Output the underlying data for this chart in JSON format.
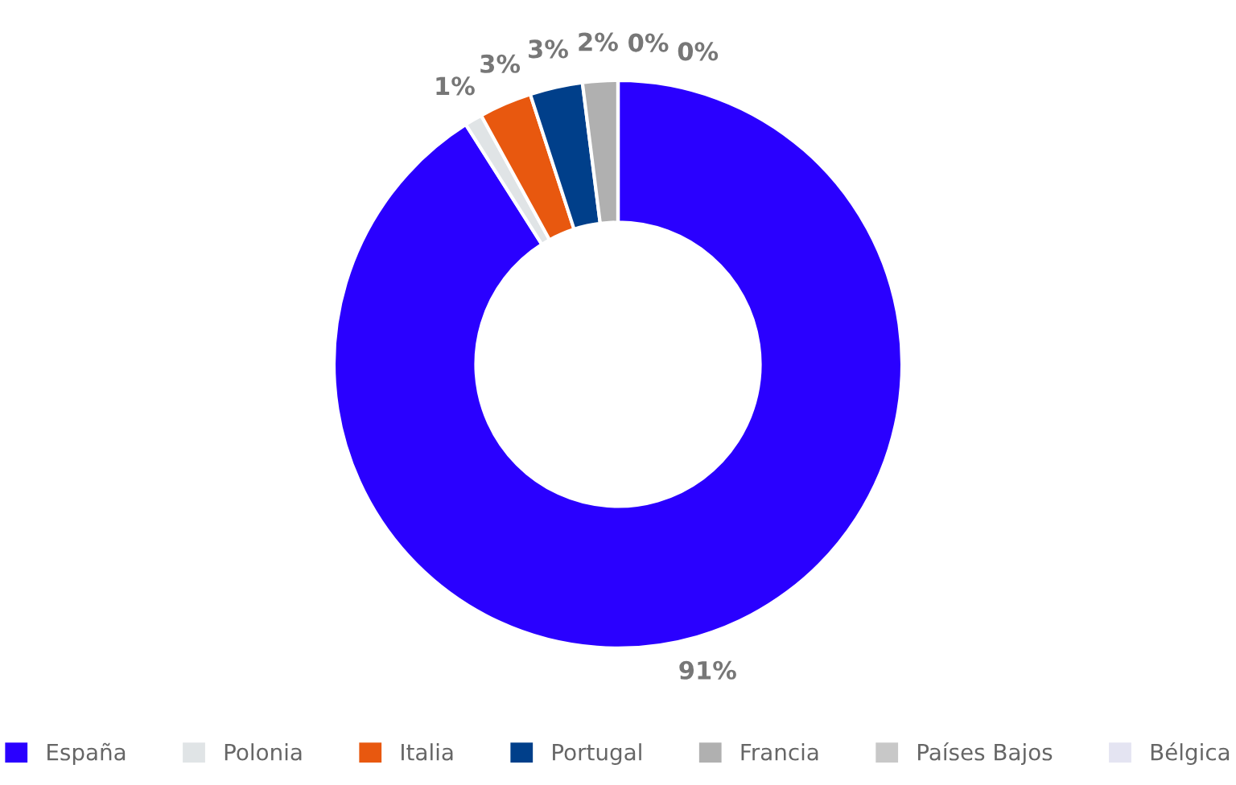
{
  "chart_data": {
    "type": "donut",
    "categories": [
      "España",
      "Polonia",
      "Italia",
      "Portugal",
      "Francia",
      "Países Bajos",
      "Bélgica"
    ],
    "values": [
      91,
      1,
      3,
      3,
      2,
      0,
      0
    ],
    "value_labels": [
      "91%",
      "1%",
      "3%",
      "3%",
      "2%",
      "0%",
      "0%"
    ],
    "colors": [
      "#2a00ff",
      "#e0e4e6",
      "#e8580f",
      "#003f8a",
      "#b0b0b0",
      "#c8c8c8",
      "#e4e4f2"
    ],
    "legend": "bottom"
  }
}
